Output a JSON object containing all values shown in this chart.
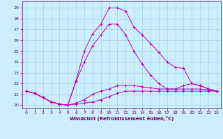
{
  "xlabel": "Windchill (Refroidissement éolien,°C)",
  "background_color": "#cceeff",
  "line_color": "#bb00bb",
  "xlim": [
    -0.5,
    23.5
  ],
  "ylim": [
    19.7,
    29.6
  ],
  "yticks": [
    20,
    21,
    22,
    23,
    24,
    25,
    26,
    27,
    28,
    29
  ],
  "xticks": [
    0,
    1,
    2,
    3,
    4,
    5,
    6,
    7,
    8,
    9,
    10,
    11,
    12,
    13,
    14,
    15,
    16,
    17,
    18,
    19,
    20,
    21,
    22,
    23
  ],
  "series": [
    [
      21.3,
      21.1,
      20.7,
      20.3,
      20.1,
      20.0,
      20.1,
      20.2,
      20.3,
      20.5,
      20.8,
      21.1,
      21.3,
      21.3,
      21.3,
      21.3,
      21.3,
      21.3,
      21.3,
      21.3,
      21.3,
      21.3,
      21.3,
      21.3
    ],
    [
      21.3,
      21.1,
      20.7,
      20.3,
      20.1,
      20.0,
      20.2,
      20.5,
      21.0,
      21.3,
      21.5,
      21.8,
      21.8,
      21.8,
      21.7,
      21.6,
      21.5,
      21.5,
      21.5,
      21.5,
      21.5,
      21.5,
      21.4,
      21.3
    ],
    [
      21.3,
      21.1,
      20.7,
      20.3,
      20.1,
      20.0,
      22.2,
      24.0,
      25.5,
      26.5,
      27.5,
      27.5,
      26.5,
      25.0,
      23.8,
      22.8,
      22.0,
      21.5,
      21.5,
      21.8,
      22.0,
      21.8,
      21.5,
      21.3
    ],
    [
      21.3,
      21.1,
      20.7,
      20.3,
      20.1,
      20.0,
      22.3,
      25.0,
      26.6,
      27.5,
      29.0,
      29.0,
      28.7,
      27.2,
      26.5,
      25.7,
      24.9,
      24.0,
      23.5,
      23.4,
      22.0,
      21.8,
      21.5,
      21.3
    ]
  ]
}
